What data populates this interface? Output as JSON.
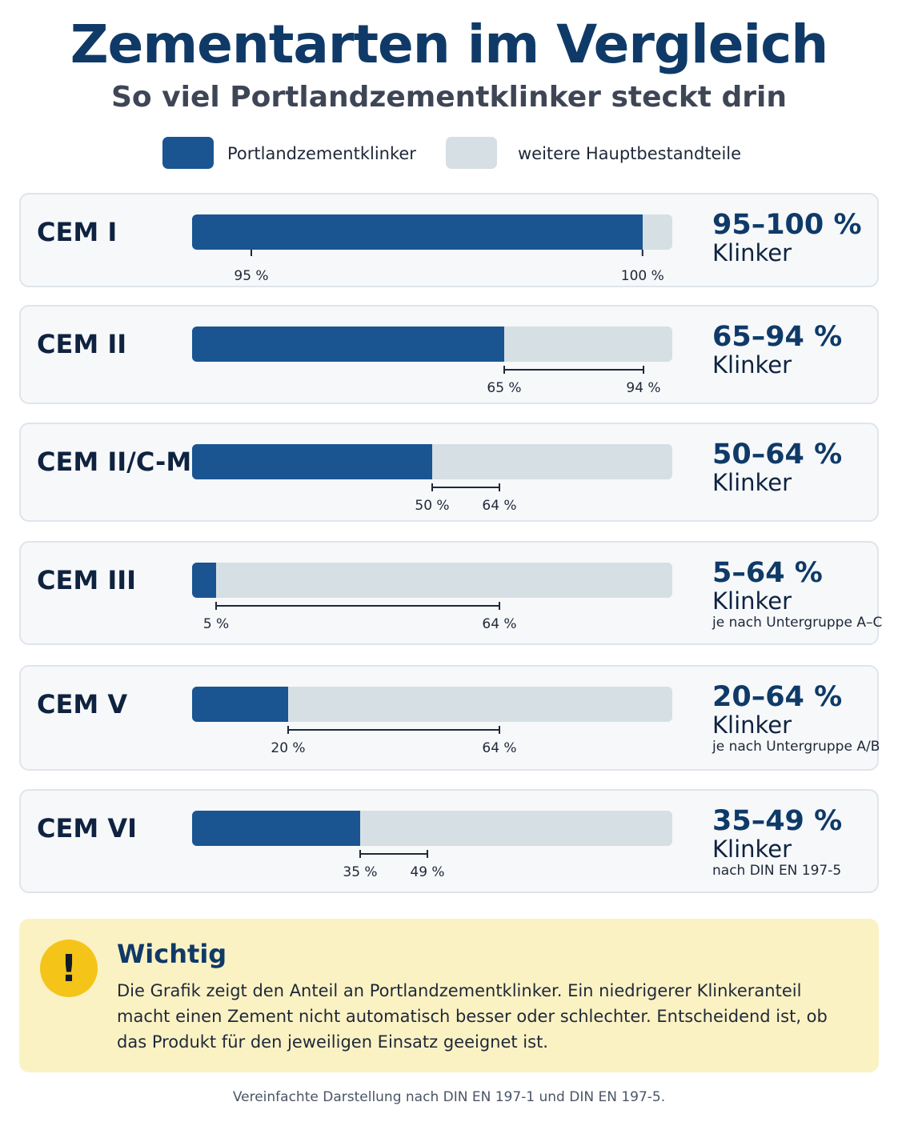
{
  "header": {
    "title": "Zementarten im Vergleich",
    "subtitle": "So viel Portlandzementklinker steckt drin"
  },
  "legend": {
    "items": [
      {
        "label": "Portlandzementklinker",
        "color": "#1a5592"
      },
      {
        "label": "weitere Hauptbestandteile",
        "color": "#d6dfe4"
      }
    ]
  },
  "chart_data": {
    "type": "bar",
    "title": "Zementarten im Vergleich",
    "subtitle": "So viel Portlandzementklinker steckt drin",
    "xlim": [
      0,
      100
    ],
    "categories": [
      "CEM I",
      "CEM II",
      "CEM II/C-M",
      "CEM III",
      "CEM V",
      "CEM VI"
    ],
    "series": [
      {
        "name": "Portlandzementklinker",
        "values": [
          100,
          65,
          50,
          5,
          20,
          35
        ]
      },
      {
        "name": "weitere Hauptbestandteile",
        "values": [
          0,
          35,
          50,
          95,
          80,
          65
        ]
      }
    ],
    "ranges": [
      {
        "min": 95,
        "max": 100,
        "min_label": "95 %",
        "max_label": "100 %",
        "bracket": false
      },
      {
        "min": 65,
        "max": 94,
        "min_label": "65 %",
        "max_label": "94 %",
        "bracket": true
      },
      {
        "min": 50,
        "max": 64,
        "min_label": "50 %",
        "max_label": "64 %",
        "bracket": true
      },
      {
        "min": 5,
        "max": 64,
        "min_label": "5 %",
        "max_label": "64 %",
        "bracket": true
      },
      {
        "min": 20,
        "max": 64,
        "min_label": "20 %",
        "max_label": "64 %",
        "bracket": true
      },
      {
        "min": 35,
        "max": 49,
        "min_label": "35 %",
        "max_label": "49 %",
        "bracket": true
      }
    ],
    "range_texts": [
      "95–100 %",
      "65–94 %",
      "50–64 %",
      "5–64 %",
      "20–64 %",
      "35–49 %"
    ],
    "unit_label": "Klinker",
    "notes": [
      "",
      "",
      "",
      "je nach Untergruppe A–C",
      "je nach Untergruppe A/B",
      "nach DIN EN 197-5"
    ],
    "colors": {
      "clinker": "#1a5592",
      "other": "#d6dfe4",
      "range_line": "#1f2838"
    },
    "grid": false,
    "legend_position": "top"
  },
  "warning": {
    "icon": "exclamation-icon",
    "symbol": "!",
    "title": "Wichtig",
    "text": "Die Grafik zeigt den Anteil an Portlandzementklinker. Ein niedrigerer Klinkeranteil macht einen Zement nicht automatisch besser oder schlechter. Entscheidend ist, ob das Produkt für den jeweiligen Einsatz geeignet ist."
  },
  "footer": {
    "text": "Vereinfachte Darstellung nach DIN EN 197-1 und DIN EN 197-5."
  }
}
